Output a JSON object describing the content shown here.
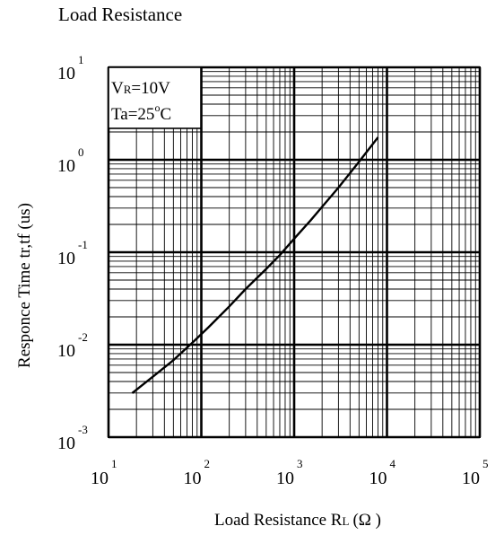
{
  "chart_data": {
    "type": "line",
    "title": "Load Resistance",
    "xlabel": "Load Resistance R",
    "xlabel_sub": "L",
    "xlabel_unit": "(Ω )",
    "ylabel": "Responce Time tr,tf (us)",
    "x_scale": "log",
    "y_scale": "log",
    "xlim": [
      10,
      100000
    ],
    "ylim": [
      0.001,
      10
    ],
    "grid": true,
    "x_ticks": [
      {
        "base": "10",
        "exp": "1"
      },
      {
        "base": "10",
        "exp": "2"
      },
      {
        "base": "10",
        "exp": "3"
      },
      {
        "base": "10",
        "exp": "4"
      },
      {
        "base": "10",
        "exp": "5"
      }
    ],
    "y_ticks": [
      {
        "base": "10",
        "exp": "1"
      },
      {
        "base": "10",
        "exp": "0"
      },
      {
        "base": "10",
        "exp": "-1"
      },
      {
        "base": "10",
        "exp": "-2"
      },
      {
        "base": "10",
        "exp": "-3"
      }
    ],
    "annotation": {
      "line1_a": "V",
      "line1_sub": "R",
      "line1_b": "=10V",
      "line2_a": "Ta=25",
      "line2_sup": "o",
      "line2_b": "C"
    },
    "series": [
      {
        "x": [
          18,
          30,
          50,
          80,
          120,
          200,
          300,
          500,
          700,
          1000,
          1500,
          2000,
          3000,
          5000,
          8000
        ],
        "y": [
          0.003,
          0.0045,
          0.0068,
          0.0105,
          0.0155,
          0.026,
          0.04,
          0.066,
          0.093,
          0.14,
          0.22,
          0.31,
          0.5,
          0.95,
          1.75
        ]
      }
    ]
  }
}
